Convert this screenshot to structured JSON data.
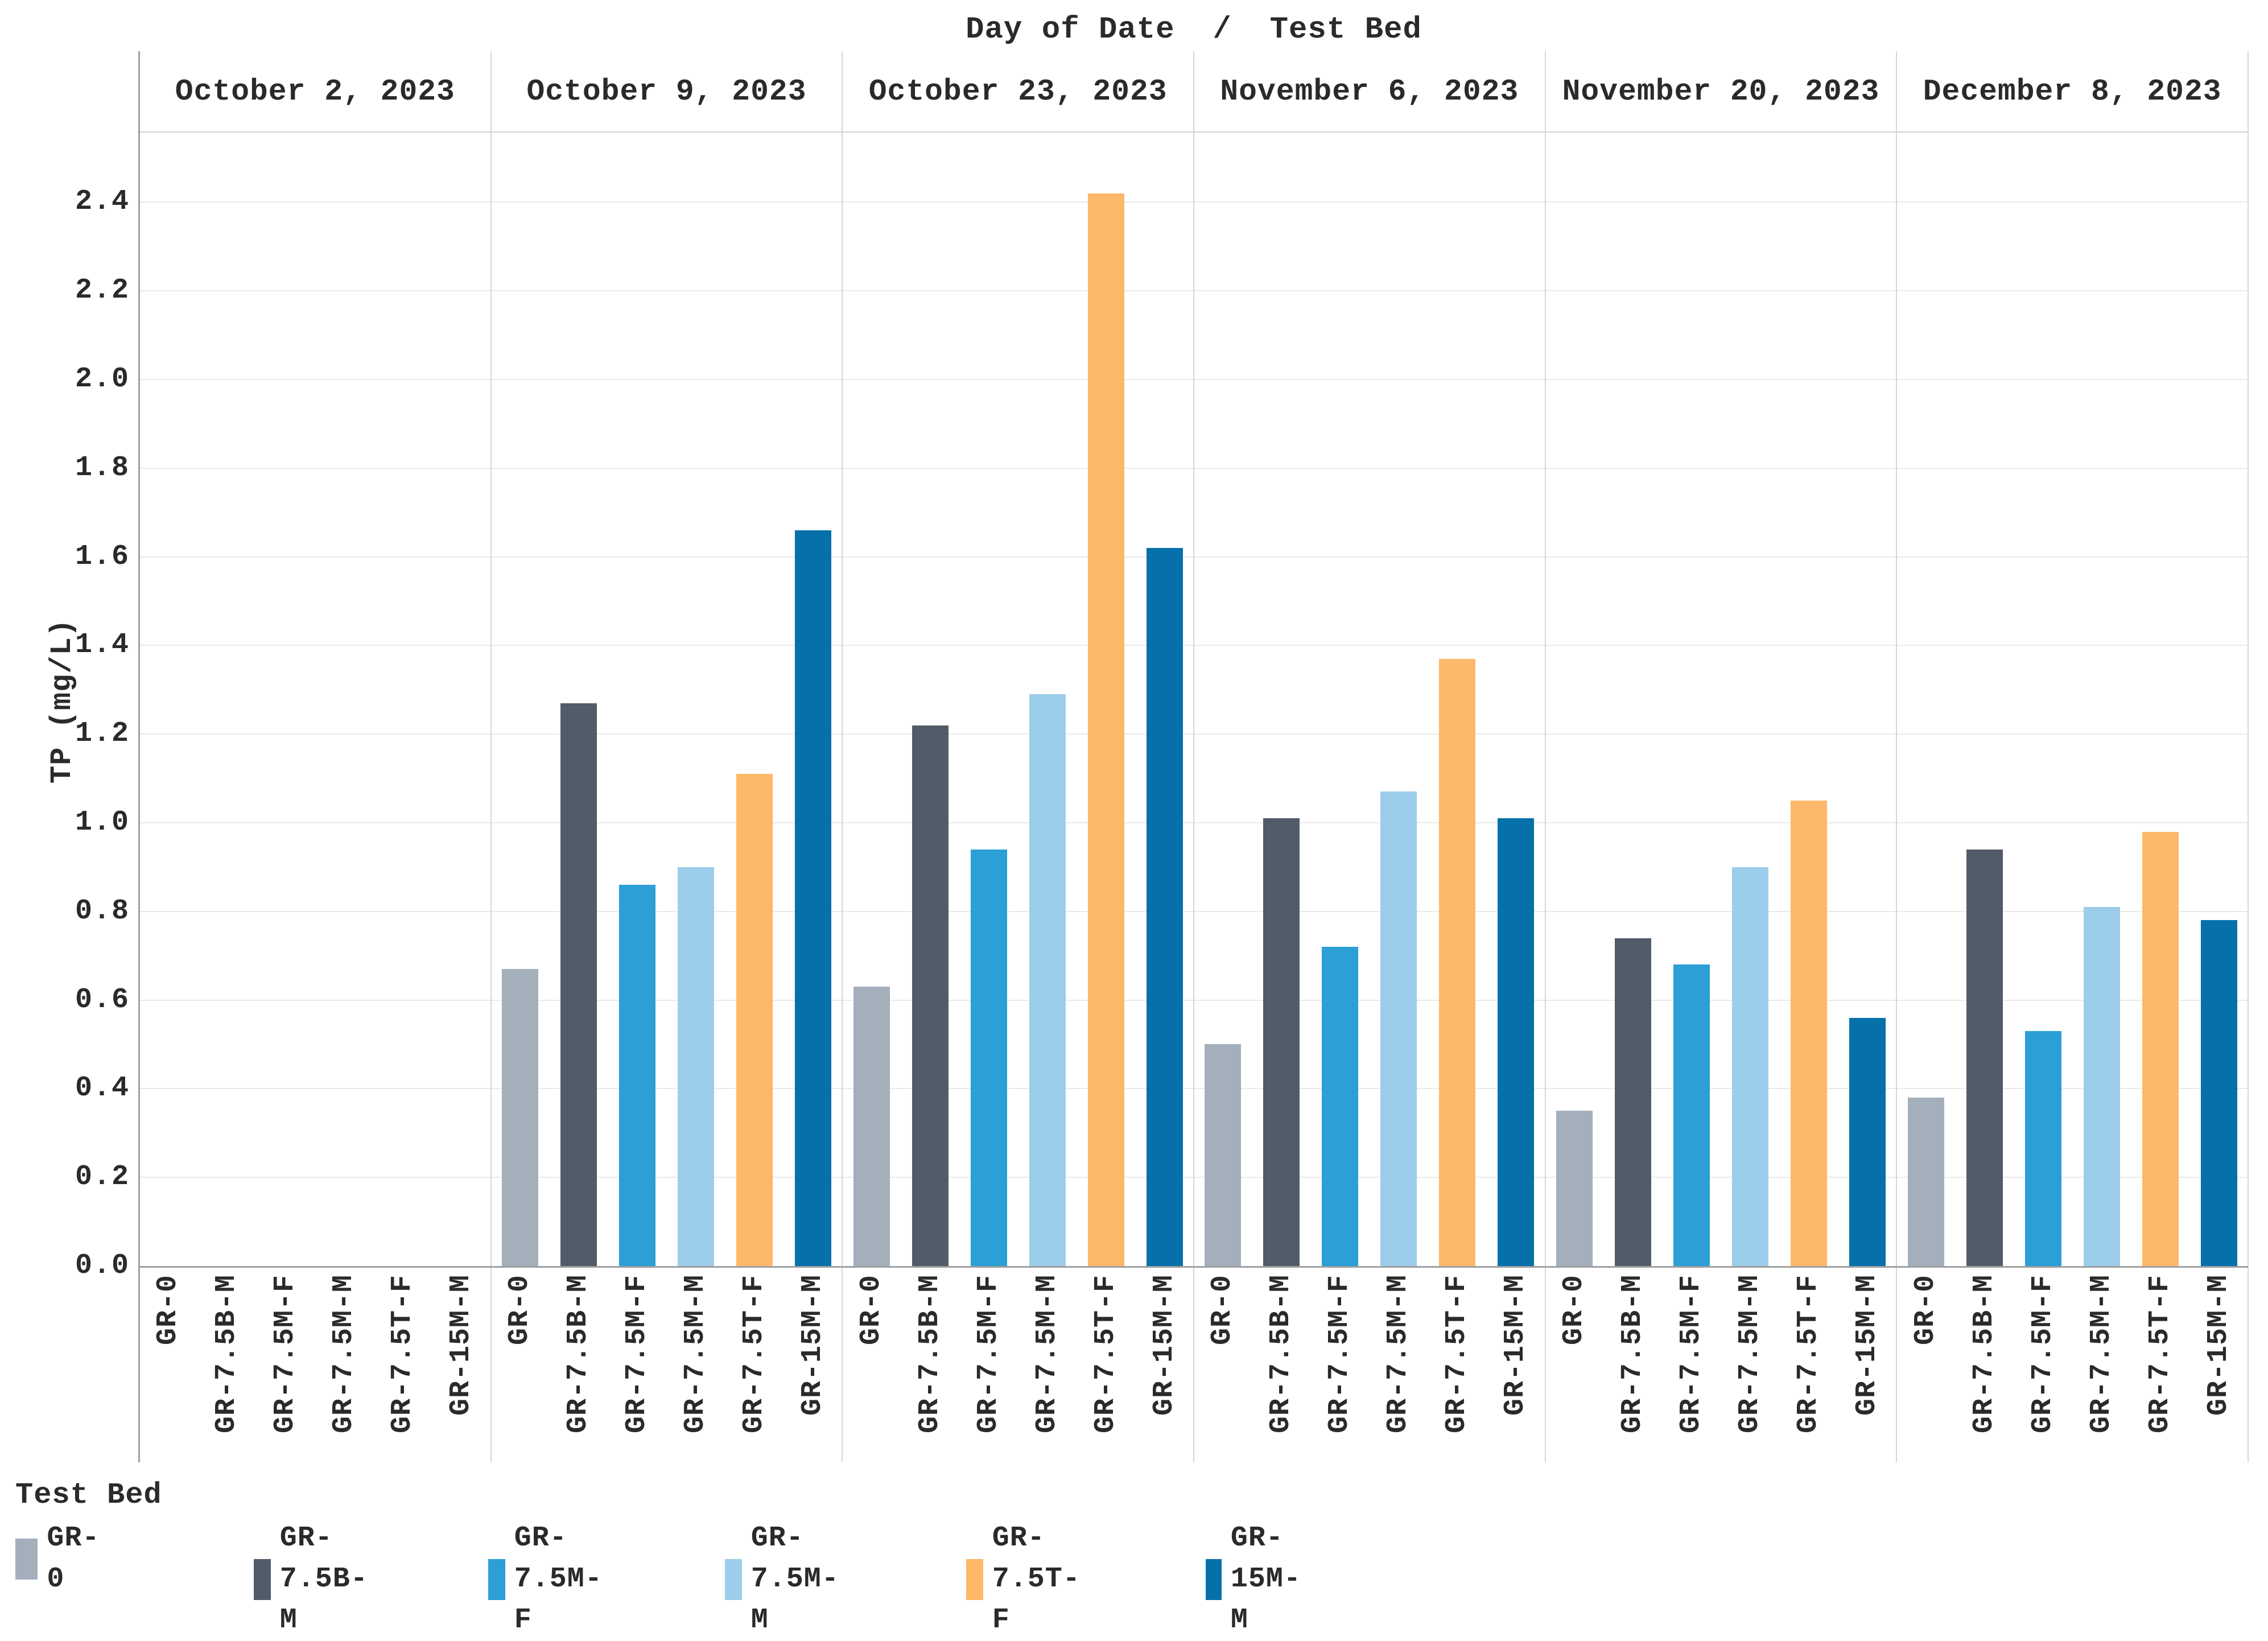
{
  "chart_data": {
    "type": "bar",
    "title": "Day of Date  /  Test Bed",
    "ylabel": "TP (mg/L)",
    "legend_title": "Test Bed",
    "legend_position": "bottom-left",
    "grid": "horizontal",
    "ylim": [
      0,
      2.5
    ],
    "ytick_step": 0.2,
    "yticks": [
      "0.0",
      "0.2",
      "0.4",
      "0.6",
      "0.8",
      "1.0",
      "1.2",
      "1.4",
      "1.6",
      "1.8",
      "2.0",
      "2.2",
      "2.4"
    ],
    "panels": [
      "October 2, 2023",
      "October 9, 2023",
      "October 23, 2023",
      "November 6, 2023",
      "November 20, 2023",
      "December 8, 2023"
    ],
    "categories": [
      "GR-0",
      "GR-7.5B-M",
      "GR-7.5M-F",
      "GR-7.5M-M",
      "GR-7.5T-F",
      "GR-15M-M"
    ],
    "series": [
      {
        "name": "GR-0",
        "color": "#a4afbc",
        "values": [
          null,
          0.67,
          0.63,
          0.5,
          0.35,
          0.38
        ]
      },
      {
        "name": "GR-7.5B-M",
        "color": "#515c68",
        "values": [
          null,
          1.27,
          1.22,
          1.01,
          0.74,
          0.94
        ]
      },
      {
        "name": "GR-7.5M-F",
        "color": "#2b9fd6",
        "values": [
          null,
          0.86,
          0.94,
          0.72,
          0.68,
          0.53
        ]
      },
      {
        "name": "GR-7.5M-M",
        "color": "#9ccdea",
        "values": [
          null,
          0.9,
          1.29,
          1.07,
          0.9,
          0.81
        ]
      },
      {
        "name": "GR-7.5T-F",
        "color": "#fdb869",
        "values": [
          null,
          1.11,
          2.42,
          1.37,
          1.05,
          0.98
        ]
      },
      {
        "name": "GR-15M-M",
        "color": "#0670ab",
        "values": [
          null,
          1.66,
          1.62,
          1.01,
          0.56,
          0.78
        ]
      }
    ]
  }
}
